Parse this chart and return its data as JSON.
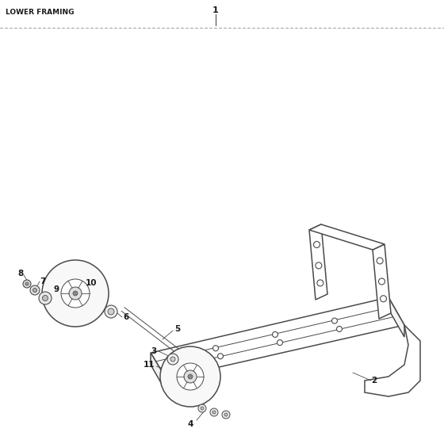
{
  "title": "LOWER FRAMING",
  "background_color": "#ffffff",
  "line_color": "#4a4a4a",
  "label_color": "#1a1a1a",
  "dotted_line_color": "#999999",
  "fig_width": 5.6,
  "fig_height": 5.6,
  "dpi": 100
}
